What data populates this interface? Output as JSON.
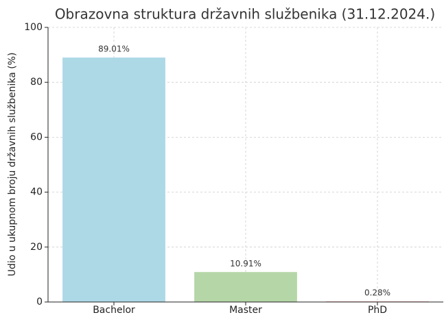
{
  "chart_data": {
    "type": "bar",
    "title": "Obrazovna struktura državnih službenika (31.12.2024.)",
    "ylabel": "Udio u ukupnom broju državnih službenika (%)",
    "categories": [
      "Bachelor",
      "Master",
      "PhD"
    ],
    "values": [
      89.01,
      10.91,
      0.28
    ],
    "value_labels": [
      "89.01%",
      "10.91%",
      "0.28%"
    ],
    "colors": [
      "#add8e6",
      "#b5d6a7",
      "#f4c2c2"
    ],
    "ylim": [
      0,
      100
    ],
    "yticks": [
      0,
      20,
      40,
      60,
      80,
      100
    ],
    "grid": true
  }
}
